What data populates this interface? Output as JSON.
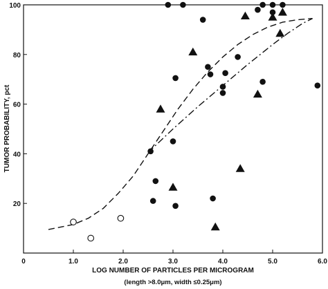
{
  "chart_data": {
    "type": "scatter",
    "xlabel": "LOG NUMBER OF PARTICLES PER MICROGRAM",
    "xlabel_sub": "(length >8.0μm, width ≤0.25μm)",
    "ylabel": "TUMOR PROBABILITY, pct",
    "xlim": [
      0,
      6.0
    ],
    "ylim": [
      0,
      100
    ],
    "x_ticks": [
      "0",
      "1.0",
      "2.0",
      "3.0",
      "4.0",
      "5.0",
      "6.0"
    ],
    "y_ticks": [
      "20",
      "40",
      "60",
      "80",
      "100"
    ],
    "grid": false,
    "legend": "none",
    "color": "#111111",
    "series": [
      {
        "marker": "filled-circle",
        "points": [
          [
            2.9,
            100
          ],
          [
            3.2,
            100
          ],
          [
            4.8,
            100
          ],
          [
            5.0,
            100
          ],
          [
            5.2,
            100
          ],
          [
            4.7,
            98
          ],
          [
            5.0,
            97
          ],
          [
            3.6,
            94
          ],
          [
            4.3,
            79
          ],
          [
            3.7,
            75
          ],
          [
            3.75,
            72
          ],
          [
            4.05,
            72.5
          ],
          [
            3.05,
            70.5
          ],
          [
            4.8,
            69
          ],
          [
            4.0,
            67
          ],
          [
            5.9,
            67.5
          ],
          [
            4.0,
            64.5
          ],
          [
            3.0,
            45
          ],
          [
            2.55,
            41
          ],
          [
            2.65,
            29
          ],
          [
            3.8,
            22
          ],
          [
            2.6,
            21
          ],
          [
            3.05,
            19
          ]
        ]
      },
      {
        "marker": "filled-triangle",
        "points": [
          [
            4.45,
            95.5
          ],
          [
            5.0,
            95
          ],
          [
            5.2,
            97
          ],
          [
            5.15,
            88.5
          ],
          [
            3.4,
            81
          ],
          [
            2.75,
            58
          ],
          [
            4.7,
            64
          ],
          [
            4.35,
            34
          ],
          [
            3.0,
            26.5
          ],
          [
            3.85,
            10.5
          ]
        ]
      },
      {
        "marker": "open-circle",
        "points": [
          [
            1.0,
            12.5
          ],
          [
            1.35,
            6
          ],
          [
            1.95,
            14
          ]
        ]
      }
    ],
    "curves": [
      {
        "style": "dashed",
        "points": [
          [
            0.5,
            9.5
          ],
          [
            1.0,
            11.5
          ],
          [
            1.3,
            14
          ],
          [
            1.6,
            18
          ],
          [
            1.9,
            24
          ],
          [
            2.2,
            31
          ],
          [
            2.5,
            40
          ],
          [
            2.8,
            49
          ],
          [
            3.1,
            58
          ],
          [
            3.4,
            66
          ],
          [
            3.7,
            73
          ],
          [
            4.0,
            79
          ],
          [
            4.3,
            84
          ],
          [
            4.6,
            88
          ],
          [
            4.9,
            91
          ],
          [
            5.2,
            93
          ],
          [
            5.5,
            94
          ],
          [
            5.8,
            94.5
          ]
        ]
      },
      {
        "style": "dash-dot",
        "points": [
          [
            2.5,
            40.5
          ],
          [
            3.0,
            50
          ],
          [
            3.5,
            59
          ],
          [
            4.0,
            67.5
          ],
          [
            4.5,
            76
          ],
          [
            5.0,
            84
          ],
          [
            5.3,
            88.5
          ],
          [
            5.6,
            92.5
          ],
          [
            5.8,
            94.5
          ]
        ]
      }
    ]
  }
}
